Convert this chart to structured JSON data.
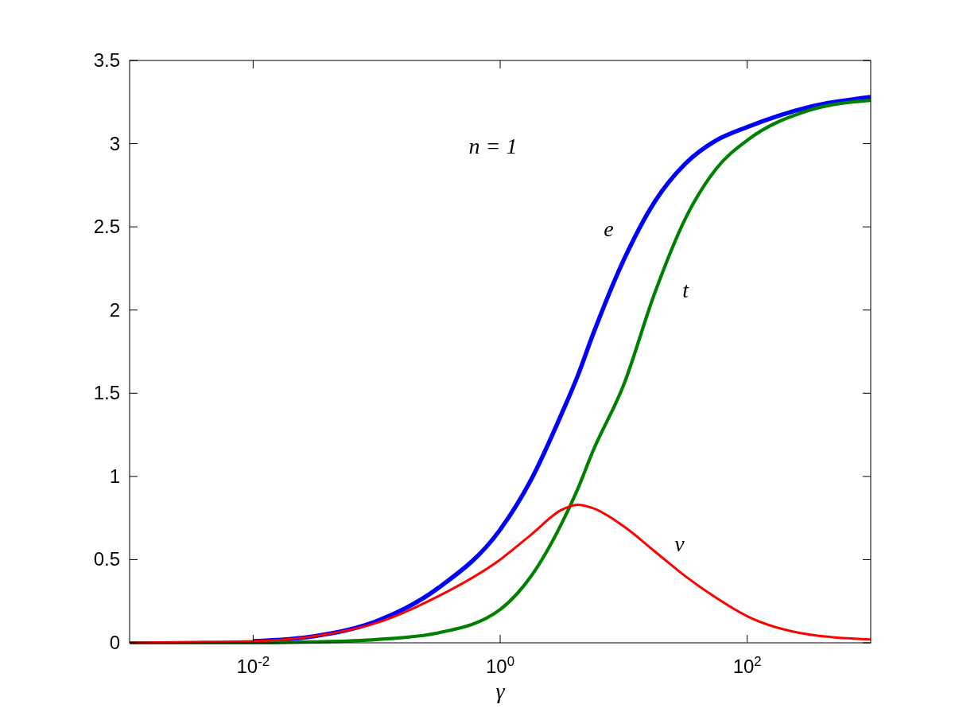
{
  "chart_data": {
    "type": "line",
    "xlabel": "γ",
    "annotations": [
      "n = 1"
    ],
    "log": "x",
    "grid": false,
    "x": [
      0.001,
      0.00316,
      0.01,
      0.0316,
      0.1,
      0.316,
      1,
      1.78,
      3.16,
      4.22,
      5.62,
      10,
      17.8,
      31.6,
      56.2,
      100,
      316,
      1000
    ],
    "series": [
      {
        "name": "e",
        "color": "#0000ff",
        "values": [
          null,
          null,
          0.01,
          0.04,
          0.13,
          0.33,
          0.68,
          0.98,
          1.38,
          1.6,
          1.85,
          2.3,
          2.65,
          2.88,
          3.02,
          3.1,
          3.22,
          3.28
        ]
      },
      {
        "name": "t",
        "color": "#008000",
        "values": [
          0,
          0,
          0,
          0.005,
          0.02,
          0.06,
          0.2,
          0.4,
          0.72,
          0.92,
          1.15,
          1.55,
          2.1,
          2.55,
          2.85,
          3.02,
          3.2,
          3.26
        ]
      },
      {
        "name": "v",
        "color": "#ff0000",
        "values": [
          0,
          0.005,
          0.01,
          0.04,
          0.12,
          0.28,
          0.5,
          0.65,
          0.8,
          0.83,
          0.81,
          0.7,
          0.55,
          0.4,
          0.27,
          0.16,
          0.05,
          0.02
        ]
      }
    ],
    "xlim": [
      0.001,
      1000
    ],
    "ylim": [
      0,
      3.5
    ],
    "xticks": [
      {
        "value": 0.01,
        "label": "10$^{-2}$"
      },
      {
        "value": 1,
        "label": "10$^{0}$"
      },
      {
        "value": 100,
        "label": "10$^{2}$"
      }
    ],
    "yticks": [
      0,
      0.5,
      1,
      1.5,
      2,
      2.5,
      3,
      3.5
    ]
  }
}
